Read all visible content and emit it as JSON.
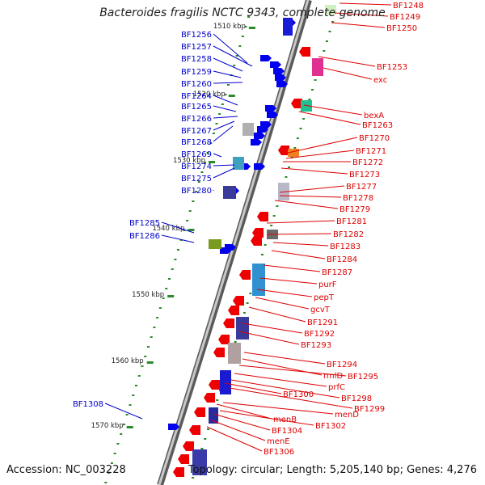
{
  "title": "Bacteroides fragilis NCTC 9343, complete genome",
  "accession": "Accession: NC_003228",
  "topology": "Topology: circular; Length: 5,205,140 bp; Genes: 4,276",
  "colors": {
    "forward_label": "#0000cc",
    "reverse_label": "#dd0000",
    "backbone": "#808080",
    "tick": "#2a8a2a"
  },
  "ticks": [
    "1510 kbp",
    "1520 kbp",
    "1530 kbp",
    "1540 kbp",
    "1550 kbp",
    "1560 kbp",
    "1570 kbp"
  ],
  "left_labels": [
    "BF1256",
    "BF1257",
    "BF1258",
    "BF1259",
    "BF1260",
    "BF1264",
    "BF1265",
    "BF1266",
    "BF1267",
    "BF1268",
    "BF1269",
    "BF1274",
    "BF1275",
    "BF1280",
    "BF1285",
    "BF1286",
    "BF1308"
  ],
  "right_labels": [
    "BF1248",
    "BF1249",
    "BF1250",
    "BF1253",
    "exc",
    "bexA",
    "BF1263",
    "BF1270",
    "BF1271",
    "BF1272",
    "BF1273",
    "BF1277",
    "BF1278",
    "BF1279",
    "BF1281",
    "BF1282",
    "BF1283",
    "BF1284",
    "BF1287",
    "purF",
    "pepT",
    "gcvT",
    "BF1291",
    "BF1292",
    "BF1293",
    "BF1294",
    "rmlD",
    "BF1295",
    "prfC",
    "BF1298",
    "BF1299",
    "BF1300",
    "menD",
    "menB",
    "BF1302",
    "BF1304",
    "menE",
    "BF1306"
  ]
}
